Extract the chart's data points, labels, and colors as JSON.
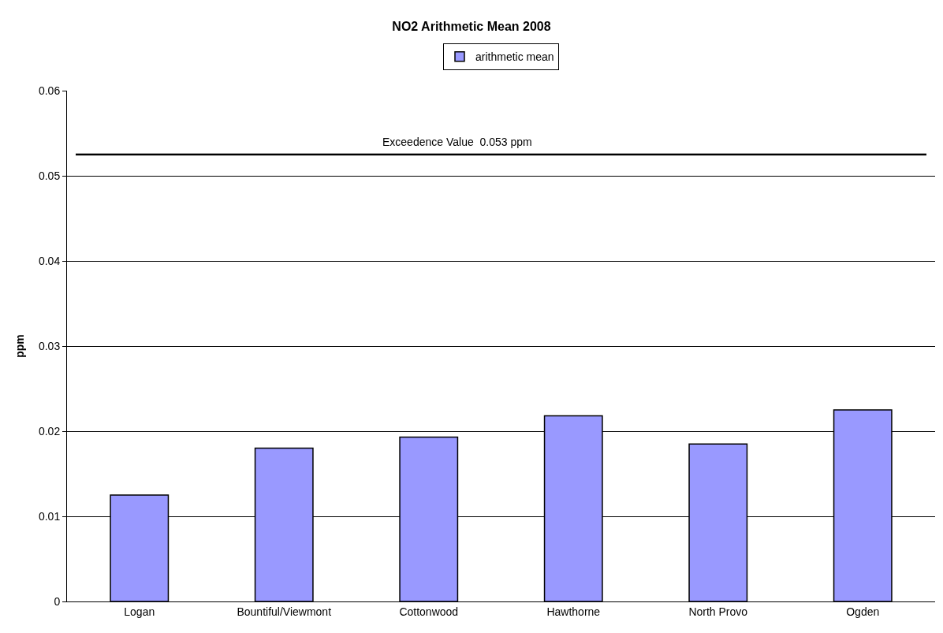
{
  "chart_data": {
    "type": "bar",
    "title": "NO2 Arithmetic Mean 2008",
    "ylabel": "ppm",
    "categories": [
      "Logan",
      "Bountiful/Viewmont",
      "Cottonwood",
      "Hawthorne",
      "North Provo",
      "Ogden"
    ],
    "series": [
      {
        "name": "arithmetic mean",
        "color": "#9999ff",
        "values": [
          0.0125,
          0.018,
          0.0193,
          0.0218,
          0.0185,
          0.0225
        ]
      }
    ],
    "ylim": [
      0,
      0.06
    ],
    "yticks": [
      0,
      0.01,
      0.02,
      0.03,
      0.04,
      0.05,
      0.06
    ],
    "ref_lines": [
      {
        "axis": "y",
        "value": 0.0525,
        "label": "Exceedence Value  0.053 ppm",
        "color": "#000000"
      }
    ],
    "grid": "y",
    "legend": "top"
  }
}
